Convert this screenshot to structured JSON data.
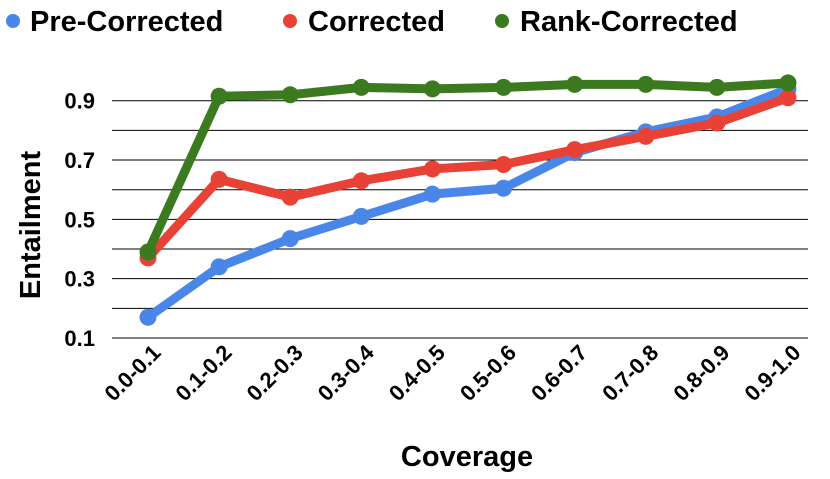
{
  "chart_data": {
    "type": "line",
    "title": "",
    "xlabel": "Coverage",
    "ylabel": "Entailment",
    "categories": [
      "0.0-0.1",
      "0.1-0.2",
      "0.2-0.3",
      "0.3-0.4",
      "0.4-0.5",
      "0.5-0.6",
      "0.6-0.7",
      "0.7-0.8",
      "0.8-0.9",
      "0.9-1.0"
    ],
    "yticks": [
      "0.1",
      "0.3",
      "0.5",
      "0.7",
      "0.9"
    ],
    "ylim": [
      0.1,
      0.98
    ],
    "grid": true,
    "legend_position": "top",
    "series": [
      {
        "name": "Pre-Corrected",
        "color": "#4a86e8",
        "values": [
          0.17,
          0.34,
          0.435,
          0.51,
          0.585,
          0.605,
          0.725,
          0.795,
          0.845,
          0.94
        ]
      },
      {
        "name": "Corrected",
        "color": "#e84135",
        "values": [
          0.37,
          0.635,
          0.575,
          0.63,
          0.67,
          0.685,
          0.735,
          0.78,
          0.825,
          0.91
        ]
      },
      {
        "name": "Rank-Corrected",
        "color": "#3b7a1f",
        "values": [
          0.39,
          0.915,
          0.92,
          0.945,
          0.94,
          0.945,
          0.955,
          0.955,
          0.945,
          0.96
        ]
      }
    ]
  }
}
